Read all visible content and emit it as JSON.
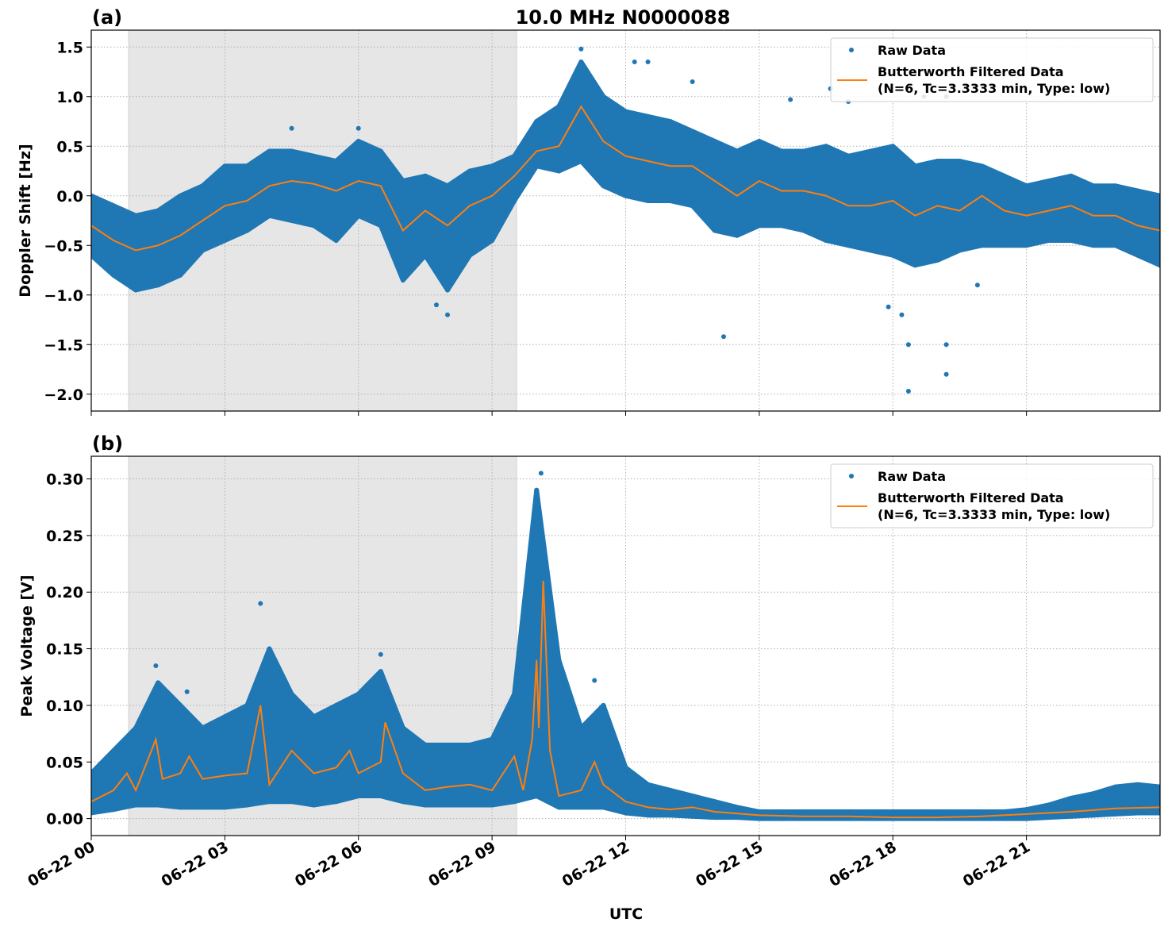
{
  "figure": {
    "title": "10.0 MHz N0000088",
    "xlabel": "UTC",
    "colors": {
      "raw": "#1f77b4",
      "filtered": "#ff7f0e",
      "shade": "#e6e6e6"
    }
  },
  "chart_data": [
    {
      "type": "scatter",
      "panel_label": "(a)",
      "ylabel": "Doppler Shift [Hz]",
      "xlim_hours": [
        0,
        24
      ],
      "ylim": [
        -2.17,
        1.67
      ],
      "grid": true,
      "legend_placement": "top-right",
      "shaded_interval_hours": [
        0.84,
        9.55
      ],
      "x_ticks": [
        "06-22 00",
        "06-22 03",
        "06-22 06",
        "06-22 09",
        "06-22 12",
        "06-22 15",
        "06-22 18",
        "06-22 21"
      ],
      "x_tick_hours": [
        0,
        3,
        6,
        9,
        12,
        15,
        18,
        21
      ],
      "y_ticks": [
        1.5,
        1.0,
        0.5,
        0.0,
        -0.5,
        -1.0,
        -1.5,
        -2.0
      ],
      "y_tick_labels": [
        "1.5",
        "1.0",
        "0.5",
        "0.0",
        "−0.5",
        "−1.0",
        "−1.5",
        "−2.0"
      ],
      "legend": [
        "Raw Data",
        "Butterworth Filtered Data",
        "(N=6, Tc=3.3333 min, Type: low)"
      ],
      "raw_envelope": {
        "x_hours": [
          0,
          0.5,
          1,
          1.5,
          2,
          2.5,
          3,
          3.5,
          4,
          4.5,
          5,
          5.5,
          6,
          6.5,
          7,
          7.5,
          8,
          8.5,
          9,
          9.5,
          10,
          10.5,
          11,
          11.5,
          12,
          12.5,
          13,
          13.5,
          14,
          14.5,
          15,
          15.5,
          16,
          16.5,
          17,
          17.5,
          18,
          18.5,
          19,
          19.5,
          20,
          20.5,
          21,
          21.5,
          22,
          22.5,
          23,
          23.5,
          24
        ],
        "upper": [
          0.0,
          -0.1,
          -0.2,
          -0.15,
          0.0,
          0.1,
          0.3,
          0.3,
          0.45,
          0.45,
          0.4,
          0.35,
          0.55,
          0.45,
          0.15,
          0.2,
          0.1,
          0.25,
          0.3,
          0.4,
          0.75,
          0.9,
          1.35,
          1.0,
          0.85,
          0.8,
          0.75,
          0.65,
          0.55,
          0.45,
          0.55,
          0.45,
          0.45,
          0.5,
          0.4,
          0.45,
          0.5,
          0.3,
          0.35,
          0.35,
          0.3,
          0.2,
          0.1,
          0.15,
          0.2,
          0.1,
          0.1,
          0.05,
          0.0
        ],
        "lower": [
          -0.6,
          -0.8,
          -0.95,
          -0.9,
          -0.8,
          -0.55,
          -0.45,
          -0.35,
          -0.2,
          -0.25,
          -0.3,
          -0.45,
          -0.2,
          -0.3,
          -0.85,
          -0.6,
          -0.95,
          -0.6,
          -0.45,
          -0.05,
          0.3,
          0.25,
          0.35,
          0.1,
          0.0,
          -0.05,
          -0.05,
          -0.1,
          -0.35,
          -0.4,
          -0.3,
          -0.3,
          -0.35,
          -0.45,
          -0.5,
          -0.55,
          -0.6,
          -0.7,
          -0.65,
          -0.55,
          -0.5,
          -0.5,
          -0.5,
          -0.45,
          -0.45,
          -0.5,
          -0.5,
          -0.6,
          -0.7
        ]
      },
      "raw_outliers": [
        [
          11.0,
          1.48
        ],
        [
          12.2,
          1.35
        ],
        [
          12.5,
          1.35
        ],
        [
          13.5,
          1.15
        ],
        [
          14.2,
          -1.42
        ],
        [
          15.7,
          0.97
        ],
        [
          16.6,
          1.08
        ],
        [
          17.0,
          0.95
        ],
        [
          17.9,
          -1.12
        ],
        [
          18.2,
          -1.2
        ],
        [
          18.35,
          -1.5
        ],
        [
          18.35,
          -1.97
        ],
        [
          18.7,
          1.0
        ],
        [
          19.2,
          1.0
        ],
        [
          19.2,
          -1.5
        ],
        [
          19.2,
          -1.8
        ],
        [
          19.9,
          -0.9
        ],
        [
          8.0,
          -1.2
        ],
        [
          7.75,
          -1.1
        ],
        [
          4.5,
          0.68
        ],
        [
          6.0,
          0.68
        ]
      ],
      "filtered": {
        "x_hours": [
          0,
          0.5,
          1,
          1.5,
          2,
          2.5,
          3,
          3.5,
          4,
          4.5,
          5,
          5.5,
          6,
          6.5,
          7,
          7.5,
          8,
          8.5,
          9,
          9.5,
          10,
          10.5,
          11,
          11.5,
          12,
          12.5,
          13,
          13.5,
          14,
          14.5,
          15,
          15.5,
          16,
          16.5,
          17,
          17.5,
          18,
          18.5,
          19,
          19.5,
          20,
          20.5,
          21,
          21.5,
          22,
          22.5,
          23,
          23.5,
          24
        ],
        "y": [
          -0.3,
          -0.45,
          -0.55,
          -0.5,
          -0.4,
          -0.25,
          -0.1,
          -0.05,
          0.1,
          0.15,
          0.12,
          0.05,
          0.15,
          0.1,
          -0.35,
          -0.15,
          -0.3,
          -0.1,
          0.0,
          0.2,
          0.45,
          0.5,
          0.9,
          0.55,
          0.4,
          0.35,
          0.3,
          0.3,
          0.15,
          0.0,
          0.15,
          0.05,
          0.05,
          0.0,
          -0.1,
          -0.1,
          -0.05,
          -0.2,
          -0.1,
          -0.15,
          0.0,
          -0.15,
          -0.2,
          -0.15,
          -0.1,
          -0.2,
          -0.2,
          -0.3,
          -0.35
        ]
      }
    },
    {
      "type": "scatter",
      "panel_label": "(b)",
      "ylabel": "Peak Voltage [V]",
      "xlim_hours": [
        0,
        24
      ],
      "ylim": [
        -0.015,
        0.32
      ],
      "grid": true,
      "legend_placement": "top-right",
      "shaded_interval_hours": [
        0.84,
        9.55
      ],
      "x_ticks": [
        "06-22 00",
        "06-22 03",
        "06-22 06",
        "06-22 09",
        "06-22 12",
        "06-22 15",
        "06-22 18",
        "06-22 21"
      ],
      "x_tick_hours": [
        0,
        3,
        6,
        9,
        12,
        15,
        18,
        21
      ],
      "y_ticks": [
        0.3,
        0.25,
        0.2,
        0.15,
        0.1,
        0.05,
        0.0
      ],
      "y_tick_labels": [
        "0.30",
        "0.25",
        "0.20",
        "0.15",
        "0.10",
        "0.05",
        "0.00"
      ],
      "legend": [
        "Raw Data",
        "Butterworth Filtered Data",
        "(N=6, Tc=3.3333 min, Type: low)"
      ],
      "raw_envelope": {
        "x_hours": [
          0,
          0.5,
          1,
          1.5,
          2,
          2.5,
          3,
          3.5,
          4,
          4.5,
          5,
          5.5,
          6,
          6.5,
          7,
          7.5,
          8,
          8.5,
          9,
          9.5,
          10,
          10.5,
          11,
          11.5,
          12,
          12.5,
          13,
          13.5,
          14,
          14.5,
          15,
          15.5,
          16,
          16.5,
          17,
          17.5,
          18,
          18.5,
          19,
          19.5,
          20,
          20.5,
          21,
          21.5,
          22,
          22.5,
          23,
          23.5,
          24
        ],
        "upper": [
          0.04,
          0.06,
          0.08,
          0.12,
          0.1,
          0.08,
          0.09,
          0.1,
          0.15,
          0.11,
          0.09,
          0.1,
          0.11,
          0.13,
          0.08,
          0.065,
          0.065,
          0.065,
          0.07,
          0.11,
          0.29,
          0.14,
          0.08,
          0.1,
          0.045,
          0.03,
          0.025,
          0.02,
          0.015,
          0.01,
          0.006,
          0.006,
          0.006,
          0.006,
          0.006,
          0.006,
          0.006,
          0.006,
          0.006,
          0.006,
          0.006,
          0.006,
          0.008,
          0.012,
          0.018,
          0.022,
          0.028,
          0.03,
          0.028
        ],
        "lower": [
          0.005,
          0.008,
          0.012,
          0.012,
          0.01,
          0.01,
          0.01,
          0.012,
          0.015,
          0.015,
          0.012,
          0.015,
          0.02,
          0.02,
          0.015,
          0.012,
          0.012,
          0.012,
          0.012,
          0.015,
          0.02,
          0.01,
          0.01,
          0.01,
          0.005,
          0.003,
          0.003,
          0.002,
          0.001,
          0.001,
          0.0,
          0.0,
          0.0,
          0.0,
          0.0,
          0.0,
          0.0,
          0.0,
          0.0,
          0.0,
          0.0,
          0.0,
          0.0,
          0.001,
          0.002,
          0.003,
          0.004,
          0.005,
          0.005
        ]
      },
      "raw_outliers": [
        [
          3.8,
          0.19
        ],
        [
          10.1,
          0.305
        ],
        [
          11.3,
          0.122
        ],
        [
          1.45,
          0.135
        ],
        [
          6.5,
          0.145
        ],
        [
          9.95,
          0.21
        ],
        [
          2.15,
          0.112
        ],
        [
          10.0,
          0.29
        ]
      ],
      "filtered": {
        "x_hours": [
          0,
          0.5,
          0.8,
          1.0,
          1.45,
          1.6,
          2.0,
          2.2,
          2.5,
          3.0,
          3.5,
          3.8,
          4.0,
          4.5,
          5.0,
          5.5,
          5.8,
          6.0,
          6.5,
          6.6,
          7.0,
          7.5,
          8.0,
          8.5,
          9.0,
          9.5,
          9.7,
          9.9,
          10.0,
          10.05,
          10.15,
          10.3,
          10.5,
          11.0,
          11.3,
          11.5,
          12.0,
          12.5,
          13.0,
          13.5,
          14.0,
          15.0,
          16.0,
          17.0,
          18.0,
          19.0,
          20.0,
          21.0,
          22.0,
          23.0,
          24.0
        ],
        "y": [
          0.015,
          0.025,
          0.04,
          0.025,
          0.07,
          0.035,
          0.04,
          0.055,
          0.035,
          0.038,
          0.04,
          0.1,
          0.03,
          0.06,
          0.04,
          0.045,
          0.06,
          0.04,
          0.05,
          0.085,
          0.04,
          0.025,
          0.028,
          0.03,
          0.025,
          0.055,
          0.025,
          0.07,
          0.14,
          0.08,
          0.21,
          0.06,
          0.02,
          0.025,
          0.05,
          0.03,
          0.015,
          0.01,
          0.008,
          0.01,
          0.006,
          0.003,
          0.002,
          0.002,
          0.001,
          0.001,
          0.002,
          0.004,
          0.006,
          0.009,
          0.01
        ]
      }
    }
  ]
}
